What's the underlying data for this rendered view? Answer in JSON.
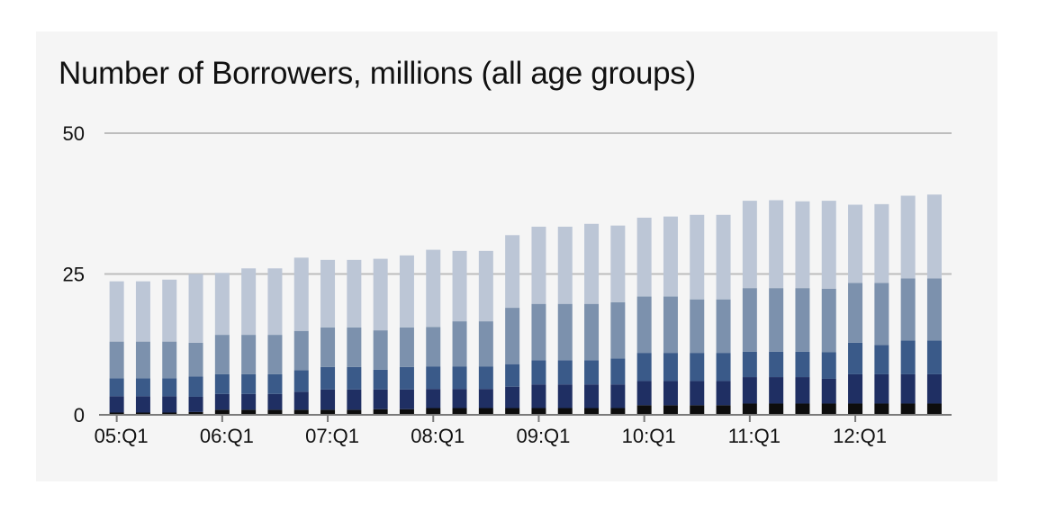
{
  "chart_data": {
    "type": "bar",
    "stacked": true,
    "title": "Number of Borrowers, millions (all age groups)",
    "xlabel": "",
    "ylabel": "",
    "ylim": [
      0,
      50
    ],
    "yticks": [
      0,
      25,
      50
    ],
    "grid": true,
    "legend": "none",
    "categories": [
      "05:Q1",
      "05:Q2",
      "05:Q3",
      "05:Q4",
      "06:Q1",
      "06:Q2",
      "06:Q3",
      "06:Q4",
      "07:Q1",
      "07:Q2",
      "07:Q3",
      "07:Q4",
      "08:Q1",
      "08:Q2",
      "08:Q3",
      "08:Q4",
      "09:Q1",
      "09:Q2",
      "09:Q3",
      "09:Q4",
      "10:Q1",
      "10:Q2",
      "10:Q3",
      "10:Q4",
      "11:Q1",
      "11:Q2",
      "11:Q3",
      "11:Q4",
      "12:Q1",
      "12:Q2",
      "12:Q3",
      "12:Q4"
    ],
    "xtick_labels": [
      "05:Q1",
      "06:Q1",
      "07:Q1",
      "08:Q1",
      "09:Q1",
      "10:Q1",
      "11:Q1",
      "12:Q1"
    ],
    "series": [
      {
        "color": "#0d0d0d",
        "values": [
          0.4,
          0.4,
          0.4,
          0.5,
          0.9,
          0.9,
          0.9,
          0.9,
          0.9,
          0.9,
          1.0,
          1.0,
          1.2,
          1.2,
          1.2,
          1.2,
          1.2,
          1.2,
          1.2,
          1.2,
          1.7,
          1.7,
          1.7,
          1.7,
          2.0,
          2.0,
          2.0,
          2.0,
          2.0,
          2.0,
          2.0,
          2.0
        ]
      },
      {
        "color": "#1f2f63",
        "values": [
          2.9,
          2.9,
          2.9,
          2.7,
          2.8,
          2.8,
          2.8,
          3.2,
          3.6,
          3.6,
          3.5,
          3.5,
          3.4,
          3.4,
          3.4,
          3.8,
          4.2,
          4.2,
          4.2,
          4.2,
          4.3,
          4.3,
          4.3,
          4.3,
          4.7,
          4.7,
          4.7,
          4.4,
          5.2,
          5.2,
          5.2,
          5.2
        ]
      },
      {
        "color": "#3a5a89",
        "values": [
          3.2,
          3.2,
          3.2,
          3.6,
          3.5,
          3.5,
          3.5,
          3.8,
          4.0,
          4.0,
          3.5,
          4.0,
          4.0,
          4.0,
          4.0,
          4.0,
          4.3,
          4.3,
          4.3,
          4.6,
          5.0,
          5.0,
          5.0,
          5.0,
          4.5,
          4.5,
          4.5,
          4.7,
          5.6,
          5.2,
          6.0,
          6.0
        ]
      },
      {
        "color": "#7c91ad",
        "values": [
          6.5,
          6.5,
          6.5,
          6.0,
          7.0,
          7.0,
          7.0,
          7.0,
          7.0,
          7.0,
          7.0,
          7.0,
          7.0,
          8.0,
          8.0,
          10.0,
          10.0,
          10.0,
          10.0,
          10.0,
          10.0,
          10.0,
          9.5,
          9.5,
          11.3,
          11.3,
          11.3,
          11.3,
          10.6,
          11.0,
          11.0,
          11.0
        ]
      },
      {
        "color": "#bcc6d6",
        "values": [
          10.7,
          10.7,
          11.0,
          12.2,
          11.0,
          11.8,
          11.8,
          13.0,
          12.0,
          12.0,
          12.7,
          12.8,
          13.7,
          12.5,
          12.5,
          12.9,
          13.7,
          13.7,
          14.2,
          13.6,
          14.0,
          14.2,
          15.0,
          15.0,
          15.5,
          15.6,
          15.4,
          15.6,
          13.9,
          14.0,
          14.7,
          14.9
        ]
      }
    ]
  }
}
